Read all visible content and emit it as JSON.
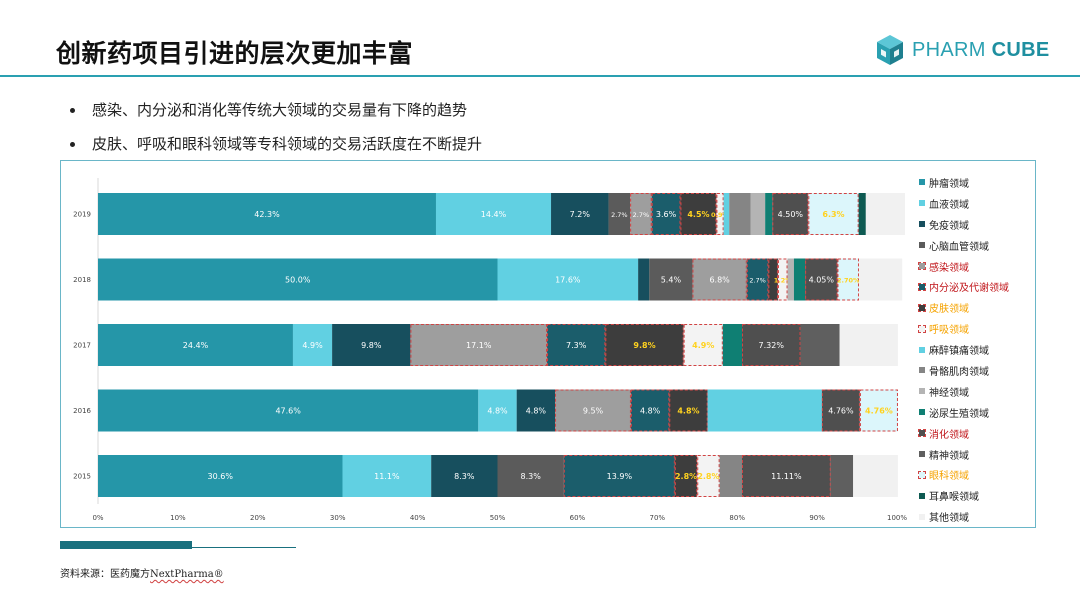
{
  "slide": {
    "title": "创新药项目引进的层次更加丰富",
    "logo": {
      "text_light": "PHARM",
      "text_bold": "CUBE",
      "icon": "cube-icon"
    },
    "bullets": [
      "感染、内分泌和消化等传统大领域的交易量有下降的趋势",
      "皮肤、呼吸和眼科领域等专科领域的交易活跃度在不断提升"
    ],
    "source_prefix": "资料来源：医药魔方",
    "source_brand": "NextPharma®"
  },
  "chart_data": {
    "type": "bar",
    "orientation": "horizontal",
    "stacked": true,
    "categories": [
      "2019",
      "2018",
      "2017",
      "2016",
      "2015"
    ],
    "xlim": [
      0,
      100
    ],
    "xticks": [
      "0%",
      "10%",
      "20%",
      "30%",
      "40%",
      "50%",
      "60%",
      "70%",
      "80%",
      "90%",
      "100%"
    ],
    "grid": false,
    "legend_position": "right",
    "series": [
      {
        "name": "肿瘤领域",
        "color": "#2596a8",
        "label_color": "#ffffff",
        "highlight": false,
        "values": [
          42.3,
          50.0,
          24.4,
          47.6,
          30.6
        ],
        "labels": [
          "42.3%",
          "50.0%",
          "24.4%",
          "47.6%",
          "30.6%"
        ]
      },
      {
        "name": "血液领域",
        "color": "#61d0e2",
        "label_color": "#ffffff",
        "highlight": false,
        "values": [
          14.4,
          17.6,
          4.9,
          4.8,
          11.1
        ],
        "labels": [
          "14.4%",
          "17.6%",
          "4.9%",
          "4.8%",
          "11.1%"
        ]
      },
      {
        "name": "免疫领域",
        "color": "#174f5e",
        "label_color": "#ffffff",
        "highlight": false,
        "values": [
          7.2,
          1.4,
          9.8,
          4.8,
          8.3
        ],
        "labels": [
          "7.2%",
          "",
          "9.8%",
          "4.8%",
          "8.3%"
        ]
      },
      {
        "name": "心脑血管领域",
        "color": "#5b5b5b",
        "label_color": "#ffffff",
        "highlight": false,
        "values": [
          2.7,
          5.4,
          0,
          0,
          8.3
        ],
        "labels": [
          "2.7%",
          "5.4%",
          "",
          "",
          "8.3%"
        ]
      },
      {
        "name": "感染领域",
        "color": "#9e9e9e",
        "label_color": "#ffffff",
        "highlight": true,
        "values": [
          2.7,
          6.8,
          17.1,
          9.5,
          0
        ],
        "labels": [
          "2.7%",
          "6.8%",
          "17.1%",
          "9.5%",
          ""
        ]
      },
      {
        "name": "内分泌及代谢领域",
        "color": "#1b5d6b",
        "label_color": "#ffffff",
        "highlight": true,
        "values": [
          3.6,
          2.7,
          7.3,
          4.8,
          13.9
        ],
        "labels": [
          "3.6%",
          "2.7%",
          "7.3%",
          "4.8%",
          "13.9%"
        ]
      },
      {
        "name": "皮肤领域",
        "color": "#3d3d3d",
        "label_color": "#ffd21f",
        "highlight": true,
        "values": [
          4.5,
          1.2,
          9.8,
          4.8,
          2.8
        ],
        "labels": [
          "4.5%",
          "",
          "9.8%",
          "4.8%",
          "2.8%"
        ]
      },
      {
        "name": "呼吸领域",
        "color": "#f3f3f3",
        "label_color": "#ffd21f",
        "highlight": true,
        "values": [
          0.9,
          1.2,
          4.9,
          0,
          2.8
        ],
        "labels": [
          "0.9%",
          "1.2%",
          "4.9%",
          "",
          "2.8%"
        ]
      },
      {
        "name": "麻醉镇痛领域",
        "color": "#61d0e2",
        "label_color": "#ffffff",
        "highlight": false,
        "values": [
          0.7,
          0,
          0,
          14.3,
          0
        ],
        "labels": [
          "",
          "",
          "",
          "",
          ""
        ]
      },
      {
        "name": "骨骼肌肉领域",
        "color": "#858585",
        "label_color": "#ffffff",
        "highlight": false,
        "values": [
          2.7,
          0,
          0,
          0,
          2.8
        ],
        "labels": [
          "",
          "",
          "",
          "",
          ""
        ]
      },
      {
        "name": "神经领域",
        "color": "#b4b4b4",
        "label_color": "#ffffff",
        "highlight": false,
        "values": [
          1.8,
          0.8,
          0,
          0,
          0
        ],
        "labels": [
          "",
          "",
          "",
          "",
          ""
        ]
      },
      {
        "name": "泌尿生殖领域",
        "color": "#0f7f73",
        "label_color": "#ffffff",
        "highlight": false,
        "values": [
          0.9,
          1.4,
          2.4,
          0,
          0
        ],
        "labels": [
          "",
          "",
          "",
          "",
          ""
        ]
      },
      {
        "name": "消化领域",
        "color": "#4f4f4f",
        "label_color": "#ffffff",
        "highlight": true,
        "values": [
          4.5,
          4.05,
          7.32,
          4.76,
          11.11
        ],
        "labels": [
          "4.50%",
          "4.05%",
          "7.32%",
          "4.76%",
          "11.11%"
        ]
      },
      {
        "name": "精神领域",
        "color": "#5f5f5f",
        "label_color": "#ffffff",
        "highlight": false,
        "values": [
          0,
          0,
          4.9,
          0,
          2.8
        ],
        "labels": [
          "",
          "",
          "",
          "",
          ""
        ]
      },
      {
        "name": "眼科领域",
        "color": "#dcf6fb",
        "label_color": "#ffd21f",
        "highlight": true,
        "values": [
          6.3,
          2.7,
          0,
          4.76,
          0
        ],
        "labels": [
          "6.3%",
          "2.70%",
          "",
          "4.76%",
          ""
        ]
      },
      {
        "name": "耳鼻喉领域",
        "color": "#0e5a52",
        "label_color": "#ffffff",
        "highlight": false,
        "values": [
          0.9,
          0,
          0,
          0,
          0
        ],
        "labels": [
          "",
          "",
          "",
          "",
          ""
        ]
      },
      {
        "name": "其他领域",
        "color": "#f1f1f1",
        "label_color": "#333333",
        "highlight": false,
        "values": [
          4.9,
          5.4,
          7.3,
          0,
          5.6
        ],
        "labels": [
          "",
          "",
          "",
          "",
          ""
        ]
      }
    ],
    "legend_text_colors": {
      "感染领域": "#c0151a",
      "内分泌及代谢领域": "#c0151a",
      "皮肤领域": "#f5a300",
      "呼吸领域": "#f5a300",
      "消化领域": "#c0151a",
      "眼科领域": "#f5a300"
    }
  }
}
